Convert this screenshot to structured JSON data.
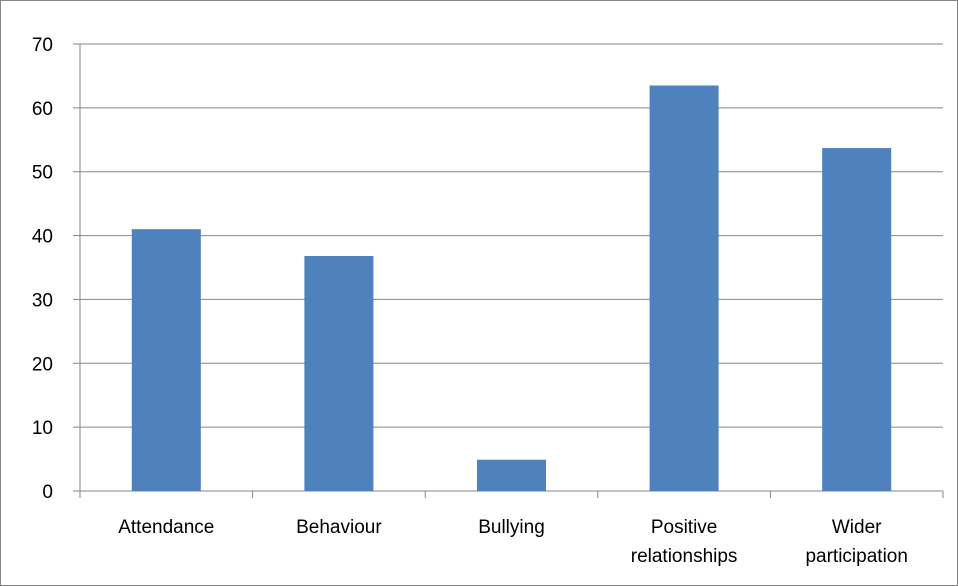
{
  "chart_data": {
    "type": "bar",
    "title": "",
    "xlabel": "",
    "ylabel": "",
    "ylim": [
      0,
      70
    ],
    "yticks": [
      0,
      10,
      20,
      30,
      40,
      50,
      60,
      70
    ],
    "grid": true,
    "legend": "none",
    "categories": [
      [
        "Attendance"
      ],
      [
        "Behaviour"
      ],
      [
        "Bullying"
      ],
      [
        "Positive",
        "relationships"
      ],
      [
        "Wider",
        "participation"
      ]
    ],
    "values": [
      41,
      36.8,
      4.9,
      63.5,
      53.7
    ],
    "colors": {
      "bar": "#4F81BD",
      "grid": "#868686",
      "axis": "#868686"
    }
  }
}
